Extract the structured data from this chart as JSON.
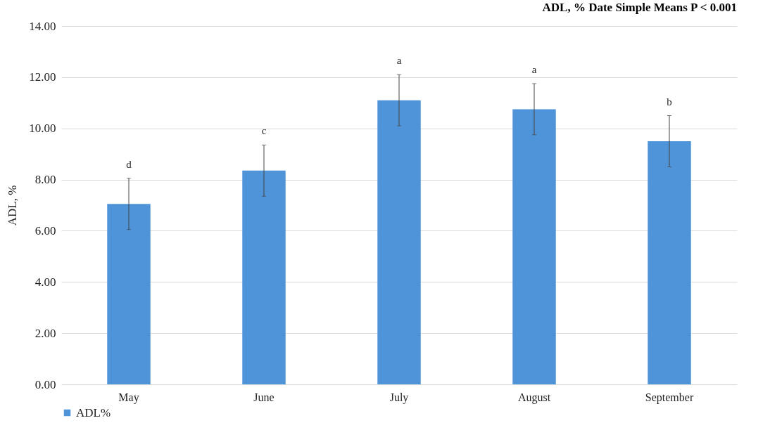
{
  "chart_data": {
    "type": "bar",
    "title": "ADL, % Date Simple Means P < 0.001",
    "ylabel": "ADL, %",
    "categories": [
      "May",
      "June",
      "July",
      "August",
      "September"
    ],
    "series": [
      {
        "name": "ADL%",
        "color": "#4f94d8",
        "values": [
          7.05,
          8.35,
          11.1,
          10.75,
          9.5
        ],
        "errors": [
          1.0,
          1.0,
          1.0,
          1.0,
          1.0
        ]
      }
    ],
    "ylim": [
      0,
      14
    ],
    "yticks": [
      {
        "value": 0,
        "label": "0.00"
      },
      {
        "value": 2,
        "label": "2.00"
      },
      {
        "value": 4,
        "label": "4.00"
      },
      {
        "value": 6,
        "label": "6.00"
      },
      {
        "value": 8,
        "label": "8.00"
      },
      {
        "value": 10,
        "label": "10.00"
      },
      {
        "value": 12,
        "label": "12.00"
      },
      {
        "value": 14,
        "label": "14.00"
      }
    ],
    "grid": "y",
    "legend": "bottom",
    "annotations": [
      "d",
      "c",
      "a",
      "a",
      "b"
    ]
  }
}
